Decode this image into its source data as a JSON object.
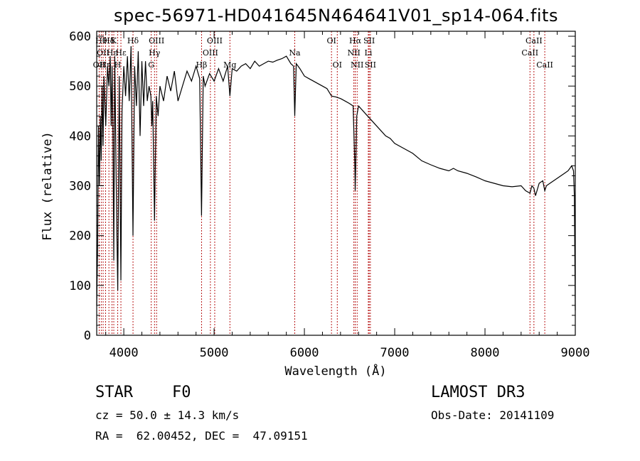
{
  "chart_data": {
    "type": "line",
    "title": "spec-56971-HD041645N464641V01_sp14-064.fits",
    "xlabel": "Wavelength (Å)",
    "ylabel": "Flux (relative)",
    "xlim": [
      3700,
      9000
    ],
    "ylim": [
      0,
      610
    ],
    "xticks": [
      4000,
      5000,
      6000,
      7000,
      8000,
      9000
    ],
    "yticks": [
      0,
      100,
      200,
      300,
      400,
      500,
      600
    ],
    "series": [
      {
        "name": "flux",
        "x": [
          3700,
          3710,
          3720,
          3730,
          3740,
          3750,
          3760,
          3770,
          3780,
          3800,
          3820,
          3835,
          3850,
          3860,
          3870,
          3880,
          3889,
          3900,
          3920,
          3933,
          3950,
          3968,
          3980,
          4000,
          4020,
          4040,
          4060,
          4080,
          4102,
          4120,
          4140,
          4160,
          4180,
          4200,
          4220,
          4240,
          4260,
          4280,
          4300,
          4310,
          4320,
          4340,
          4360,
          4380,
          4400,
          4440,
          4480,
          4520,
          4560,
          4600,
          4650,
          4700,
          4750,
          4800,
          4840,
          4861,
          4880,
          4900,
          4950,
          5000,
          5050,
          5100,
          5150,
          5175,
          5200,
          5250,
          5300,
          5350,
          5400,
          5450,
          5500,
          5550,
          5600,
          5650,
          5700,
          5750,
          5800,
          5850,
          5880,
          5893,
          5910,
          5950,
          6000,
          6050,
          6100,
          6150,
          6200,
          6250,
          6300,
          6350,
          6400,
          6450,
          6500,
          6540,
          6560,
          6563,
          6580,
          6600,
          6650,
          6700,
          6750,
          6800,
          6850,
          6900,
          6950,
          7000,
          7100,
          7200,
          7300,
          7400,
          7500,
          7600,
          7650,
          7700,
          7800,
          7900,
          8000,
          8100,
          8200,
          8300,
          8400,
          8450,
          8498,
          8520,
          8542,
          8560,
          8600,
          8640,
          8662,
          8680,
          8720,
          8760,
          8800,
          8840,
          8880,
          8920,
          8940,
          8960,
          8980,
          8990,
          9000
        ],
        "y": [
          60,
          180,
          420,
          300,
          440,
          350,
          500,
          380,
          520,
          420,
          540,
          500,
          560,
          420,
          540,
          400,
          150,
          560,
          250,
          90,
          520,
          110,
          450,
          540,
          480,
          560,
          470,
          580,
          200,
          540,
          460,
          570,
          400,
          550,
          460,
          550,
          470,
          500,
          480,
          420,
          470,
          230,
          480,
          440,
          500,
          470,
          520,
          490,
          530,
          470,
          500,
          530,
          510,
          540,
          515,
          240,
          520,
          500,
          525,
          510,
          535,
          510,
          540,
          480,
          535,
          530,
          540,
          545,
          535,
          550,
          540,
          545,
          550,
          548,
          552,
          555,
          560,
          545,
          540,
          440,
          545,
          535,
          520,
          515,
          510,
          505,
          500,
          495,
          480,
          478,
          475,
          470,
          465,
          460,
          330,
          290,
          440,
          460,
          450,
          440,
          430,
          420,
          410,
          400,
          395,
          385,
          375,
          365,
          350,
          342,
          335,
          330,
          335,
          330,
          325,
          318,
          310,
          305,
          300,
          298,
          300,
          290,
          285,
          300,
          295,
          280,
          305,
          310,
          290,
          300,
          305,
          310,
          315,
          320,
          325,
          330,
          335,
          340,
          330,
          280,
          50
        ]
      }
    ],
    "lines": [
      {
        "w": 3727,
        "label": "OII",
        "row": 3
      },
      {
        "w": 3750,
        "label": "Hθ",
        "row": 1
      },
      {
        "w": 3771,
        "label": "OII",
        "row": 2
      },
      {
        "w": 3798,
        "label": "Hη",
        "row": 3
      },
      {
        "w": 3835,
        "label": "Hδ",
        "row": 1
      },
      {
        "w": 3869,
        "label": "Hε",
        "row": 2
      },
      {
        "w": 3889,
        "label": "K",
        "row": 1
      },
      {
        "w": 3933,
        "label": "H",
        "row": 3
      },
      {
        "w": 3968,
        "label": "Hε",
        "row": 2
      },
      {
        "w": 4102,
        "label": "Hδ",
        "row": 1
      },
      {
        "w": 4304,
        "label": "G",
        "row": 3
      },
      {
        "w": 4340,
        "label": "Hγ",
        "row": 2
      },
      {
        "w": 4363,
        "label": "OIII",
        "row": 1
      },
      {
        "w": 4861,
        "label": "Hβ",
        "row": 3
      },
      {
        "w": 4959,
        "label": "OIII",
        "row": 2
      },
      {
        "w": 5007,
        "label": "OIII",
        "row": 1
      },
      {
        "w": 5175,
        "label": "Mg",
        "row": 3
      },
      {
        "w": 5893,
        "label": "Na",
        "row": 2
      },
      {
        "w": 6300,
        "label": "OI",
        "row": 1
      },
      {
        "w": 6364,
        "label": "OI",
        "row": 3
      },
      {
        "w": 6548,
        "label": "NII",
        "row": 2
      },
      {
        "w": 6563,
        "label": "Hα",
        "row": 1
      },
      {
        "w": 6584,
        "label": "NII",
        "row": 3
      },
      {
        "w": 6708,
        "label": "Li",
        "row": 2
      },
      {
        "w": 6717,
        "label": "SII",
        "row": 1
      },
      {
        "w": 6731,
        "label": "SII",
        "row": 3
      },
      {
        "w": 8498,
        "label": "CaII",
        "row": 2
      },
      {
        "w": 8542,
        "label": "CaII",
        "row": 1
      },
      {
        "w": 8662,
        "label": "CaII",
        "row": 3
      }
    ]
  },
  "info": {
    "class": "STAR",
    "subclass": "F0",
    "survey": "LAMOST DR3",
    "cz": "cz = 50.0 ± 14.3 km/s",
    "obs_date": "Obs-Date: 20141109",
    "radec": "RA =  62.00452, DEC =  47.09151"
  }
}
